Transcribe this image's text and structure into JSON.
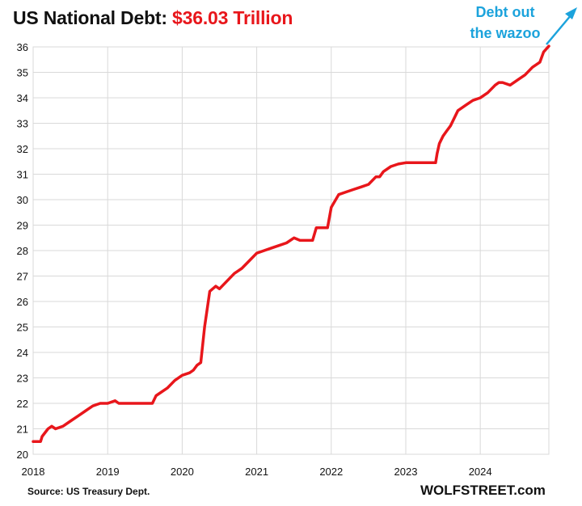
{
  "title": {
    "main": "US National Debt:",
    "highlight": "$36.03 Trillion"
  },
  "annotation": {
    "line1": "Debt out",
    "line2": "the wazoo"
  },
  "source": "Source: US Treasury Dept.",
  "brand": "WOLFSTREET.com",
  "colors": {
    "line": "#e8161b",
    "title_highlight": "#e8161b",
    "annotation": "#1ca3dc",
    "grid": "#d9d9d9"
  },
  "chart_data": {
    "type": "line",
    "xlabel": "",
    "ylabel": "",
    "xlim": [
      2018.0,
      2024.92
    ],
    "ylim": [
      20,
      36
    ],
    "grid": true,
    "x_ticks": [
      "2018",
      "2019",
      "2020",
      "2021",
      "2022",
      "2023",
      "2024"
    ],
    "y_ticks": [
      "20",
      "21",
      "22",
      "23",
      "24",
      "25",
      "26",
      "27",
      "28",
      "29",
      "30",
      "31",
      "32",
      "33",
      "34",
      "35",
      "36"
    ],
    "series": [
      {
        "x": [
          2018.0,
          2018.1,
          2018.12,
          2018.2,
          2018.25,
          2018.3,
          2018.4,
          2018.5,
          2018.6,
          2018.7,
          2018.8,
          2018.9,
          2019.0,
          2019.1,
          2019.15,
          2019.2,
          2019.4,
          2019.6,
          2019.65,
          2019.8,
          2019.9,
          2020.0,
          2020.1,
          2020.15,
          2020.2,
          2020.25,
          2020.3,
          2020.37,
          2020.45,
          2020.5,
          2020.6,
          2020.7,
          2020.75,
          2020.8,
          2020.9,
          2021.0,
          2021.1,
          2021.2,
          2021.3,
          2021.4,
          2021.5,
          2021.58,
          2021.6,
          2021.75,
          2021.8,
          2021.85,
          2021.95,
          2022.0,
          2022.1,
          2022.2,
          2022.3,
          2022.4,
          2022.5,
          2022.6,
          2022.65,
          2022.7,
          2022.8,
          2022.9,
          2023.0,
          2023.1,
          2023.2,
          2023.3,
          2023.4,
          2023.42,
          2023.45,
          2023.5,
          2023.55,
          2023.6,
          2023.7,
          2023.8,
          2023.9,
          2024.0,
          2024.1,
          2024.2,
          2024.25,
          2024.3,
          2024.4,
          2024.5,
          2024.6,
          2024.7,
          2024.75,
          2024.8,
          2024.85,
          2024.92
        ],
        "y": [
          20.5,
          20.5,
          20.7,
          21.0,
          21.1,
          21.0,
          21.1,
          21.3,
          21.5,
          21.7,
          21.9,
          22.0,
          22.0,
          22.1,
          22.0,
          22.0,
          22.0,
          22.0,
          22.3,
          22.6,
          22.9,
          23.1,
          23.2,
          23.3,
          23.5,
          23.6,
          25.0,
          26.4,
          26.6,
          26.5,
          26.8,
          27.1,
          27.2,
          27.3,
          27.6,
          27.9,
          28.0,
          28.1,
          28.2,
          28.3,
          28.5,
          28.4,
          28.4,
          28.4,
          28.9,
          28.9,
          28.9,
          29.7,
          30.2,
          30.3,
          30.4,
          30.5,
          30.6,
          30.9,
          30.9,
          31.1,
          31.3,
          31.4,
          31.45,
          31.45,
          31.45,
          31.45,
          31.45,
          31.8,
          32.2,
          32.5,
          32.7,
          32.9,
          33.5,
          33.7,
          33.9,
          34.0,
          34.2,
          34.5,
          34.6,
          34.6,
          34.5,
          34.7,
          34.9,
          35.2,
          35.3,
          35.4,
          35.8,
          36.03
        ]
      }
    ]
  }
}
